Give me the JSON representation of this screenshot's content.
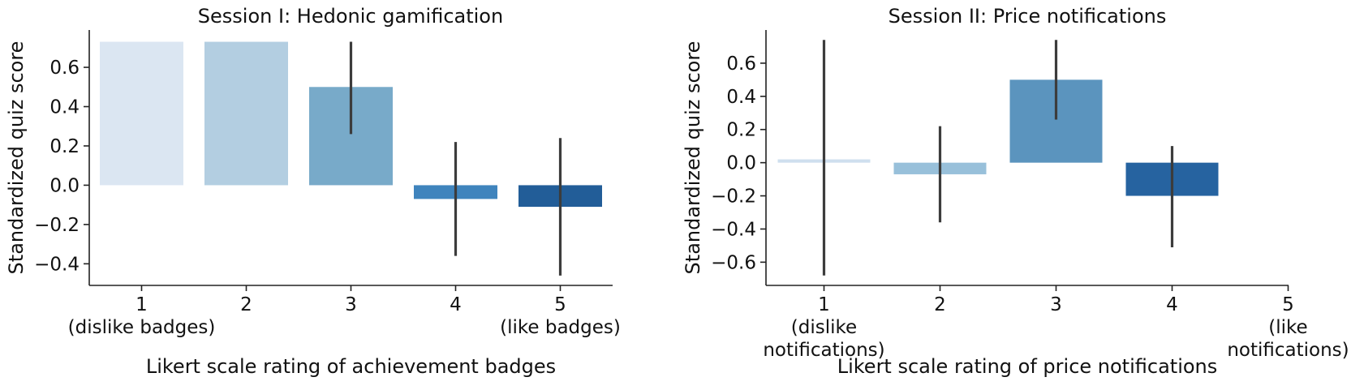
{
  "chart_data": [
    {
      "type": "bar",
      "title": "Session I: Hedonic gamification",
      "xlabel": "Likert scale rating of achievement badges",
      "ylabel": "Standardized quiz score",
      "categories": [
        "1",
        "2",
        "3",
        "4",
        "5"
      ],
      "category_sublabels": [
        [
          "(dislike badges)"
        ],
        [],
        [],
        [],
        [
          "(like badges)"
        ]
      ],
      "values": [
        0.73,
        0.73,
        0.5,
        -0.07,
        -0.11
      ],
      "error_bars": [
        null,
        null,
        [
          0.26,
          0.73
        ],
        [
          -0.36,
          0.22
        ],
        [
          -0.46,
          0.24
        ]
      ],
      "colors": [
        "#dbe6f2",
        "#b3cee1",
        "#78aac9",
        "#3f84bd",
        "#225d98"
      ],
      "ylim": [
        -0.51,
        0.79
      ],
      "yticks": [
        -0.4,
        -0.2,
        0.0,
        0.2,
        0.4,
        0.6
      ],
      "ytick_labels": [
        "−0.4",
        "−0.2",
        "0.0",
        "0.2",
        "0.4",
        "0.6"
      ],
      "grid": false
    },
    {
      "type": "bar",
      "title": "Session II: Price notifications",
      "xlabel": "Likert scale rating of price notifications",
      "ylabel": "Standardized quiz score",
      "categories": [
        "1",
        "2",
        "3",
        "4",
        "5"
      ],
      "category_sublabels": [
        [
          "(dislike",
          "notifications)"
        ],
        [],
        [],
        [],
        [
          "(like",
          "notifications)"
        ]
      ],
      "values": [
        0.02,
        -0.07,
        0.5,
        -0.2,
        null
      ],
      "error_bars": [
        [
          -0.68,
          0.74
        ],
        [
          -0.36,
          0.22
        ],
        [
          0.26,
          0.74
        ],
        [
          -0.51,
          0.1
        ],
        null
      ],
      "colors": [
        "#cfdfee",
        "#98c0da",
        "#5b94be",
        "#2663a0",
        "#225d98"
      ],
      "ylim": [
        -0.74,
        0.8
      ],
      "yticks": [
        -0.6,
        -0.4,
        -0.2,
        0.0,
        0.2,
        0.4,
        0.6
      ],
      "ytick_labels": [
        "−0.6",
        "−0.4",
        "−0.2",
        "0.0",
        "0.2",
        "0.4",
        "0.6"
      ],
      "grid": false
    }
  ]
}
